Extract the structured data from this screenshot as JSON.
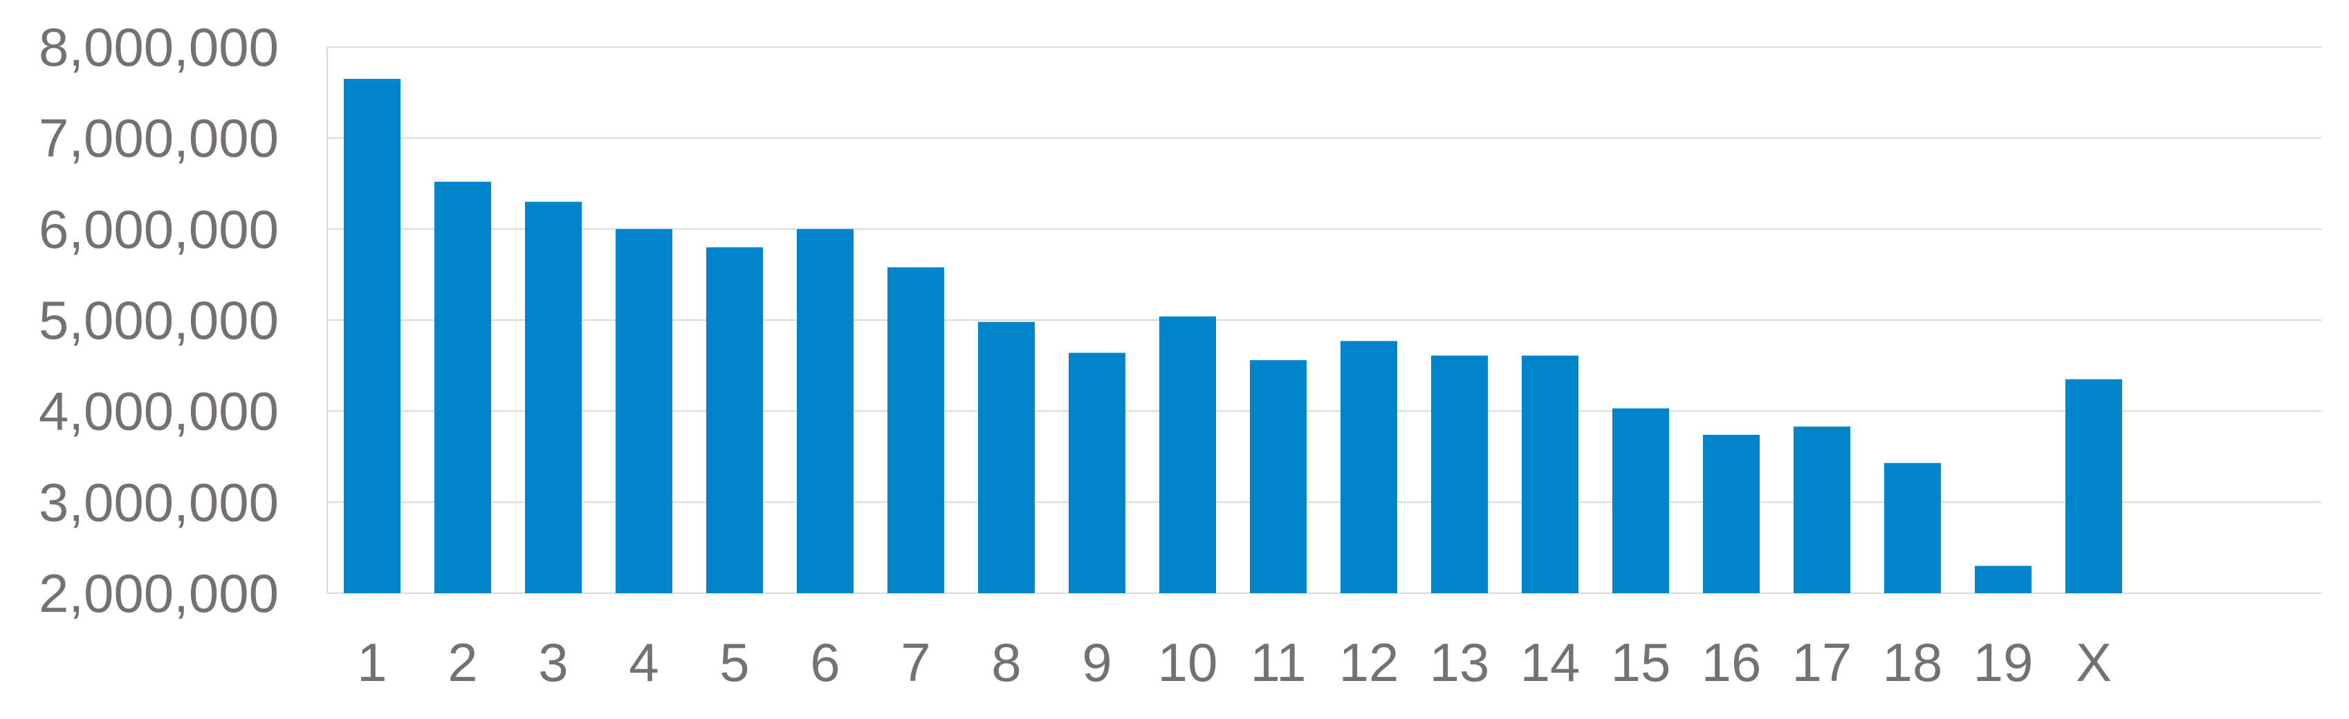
{
  "chart_data": {
    "type": "bar",
    "title": "",
    "xlabel": "",
    "ylabel": "",
    "ylim": [
      2000000,
      8000000
    ],
    "yticks": [
      2000000,
      3000000,
      4000000,
      5000000,
      6000000,
      7000000,
      8000000
    ],
    "ytick_labels": [
      "2,000,000",
      "3,000,000",
      "4,000,000",
      "5,000,000",
      "6,000,000",
      "7,000,000",
      "8,000,000"
    ],
    "grid": true,
    "bar_color": "#0085CA",
    "categories": [
      "1",
      "2",
      "3",
      "4",
      "5",
      "6",
      "7",
      "8",
      "9",
      "10",
      "11",
      "12",
      "13",
      "14",
      "15",
      "16",
      "17",
      "18",
      "19",
      "X"
    ],
    "values": [
      7650000,
      6520000,
      6300000,
      6000000,
      5800000,
      6000000,
      5580000,
      4980000,
      4640000,
      5040000,
      4560000,
      4770000,
      4610000,
      4610000,
      4030000,
      3740000,
      3830000,
      3430000,
      2300000,
      4350000
    ]
  }
}
